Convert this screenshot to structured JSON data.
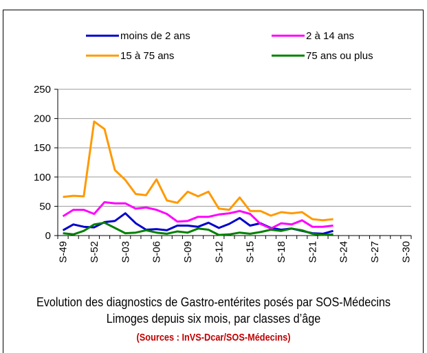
{
  "chart_data": {
    "type": "line",
    "title": "Evolution des diagnostics de Gastro-entérites posés par SOS-Médecins Limoges depuis six mois, par classes d’âge",
    "source": "(Sources : InVS-Dcar/SOS-Médecins)",
    "categories": [
      "S-49",
      null,
      null,
      "S-52",
      null,
      null,
      "S-03",
      null,
      null,
      "S-06",
      null,
      null,
      "S-09",
      null,
      null,
      "S-12",
      null,
      null,
      "S-15",
      null,
      null,
      "S-18",
      null,
      null,
      "S-21",
      null,
      null,
      "S-24",
      null,
      null,
      "S-27",
      null,
      null,
      "S-30"
    ],
    "series": [
      {
        "name": "moins de 2 ans",
        "color": "#0000cc",
        "values": [
          9,
          19,
          15,
          14,
          23,
          25,
          38,
          21,
          10,
          11,
          9,
          17,
          17,
          15,
          22,
          13,
          20,
          30,
          17,
          21,
          13,
          10,
          12,
          8,
          4,
          3,
          8,
          null,
          null,
          null,
          null,
          null,
          null,
          null
        ]
      },
      {
        "name": "2 à 14 ans",
        "color": "#ff00ff",
        "values": [
          33,
          44,
          44,
          37,
          57,
          55,
          55,
          46,
          48,
          44,
          37,
          24,
          25,
          32,
          32,
          36,
          38,
          42,
          37,
          20,
          12,
          21,
          19,
          26,
          15,
          15,
          17,
          null,
          null,
          null,
          null,
          null,
          null,
          null
        ]
      },
      {
        "name": "15 à 75 ans",
        "color": "#ff9900",
        "values": [
          66,
          68,
          67,
          195,
          182,
          112,
          95,
          71,
          69,
          96,
          60,
          56,
          75,
          67,
          75,
          46,
          44,
          65,
          42,
          42,
          34,
          40,
          38,
          40,
          28,
          26,
          28,
          null,
          null,
          null,
          null,
          null,
          null,
          null
        ]
      },
      {
        "name": "75 ans ou plus",
        "color": "#008000",
        "values": [
          4,
          2,
          8,
          19,
          22,
          13,
          4,
          5,
          9,
          5,
          3,
          7,
          5,
          12,
          10,
          1,
          2,
          5,
          3,
          6,
          10,
          8,
          12,
          9,
          3,
          1,
          2,
          null,
          null,
          null,
          null,
          null,
          null,
          null
        ]
      }
    ],
    "ylim": [
      0,
      250
    ],
    "yticks": [
      0,
      50,
      100,
      150,
      200,
      250
    ],
    "grid": true
  }
}
